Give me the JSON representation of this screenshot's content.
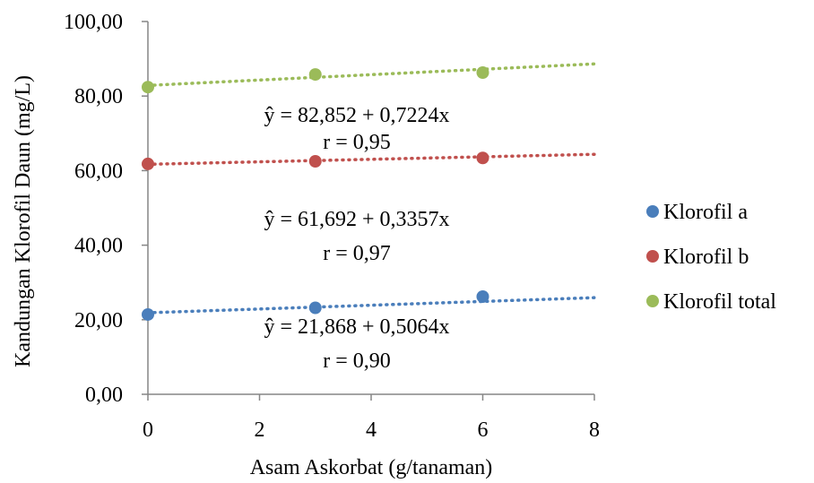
{
  "chart_data": {
    "type": "scatter",
    "xlabel": "Asam Askorbat (g/tanaman)",
    "ylabel": "Kandungan Klorofil Daun (mg/L)",
    "xlim": [
      0,
      8
    ],
    "ylim": [
      0,
      100
    ],
    "xticks": [
      "0",
      "2",
      "4",
      "6",
      "8"
    ],
    "yticks": [
      "0,00",
      "20,00",
      "40,00",
      "60,00",
      "80,00",
      "100,00"
    ],
    "grid": false,
    "legend_position": "right",
    "series": [
      {
        "name": "Klorofil a",
        "color": "#4a7ebb",
        "points": [
          {
            "x": 0,
            "y": 21.4
          },
          {
            "x": 3,
            "y": 23.2
          },
          {
            "x": 6,
            "y": 26.2
          }
        ],
        "trendline": {
          "intercept": 21.868,
          "slope": 0.5064
        },
        "equation": "ŷ =  21,868 + 0,5064x",
        "r_label": "r = 0,90"
      },
      {
        "name": "Klorofil b",
        "color": "#c0504d",
        "points": [
          {
            "x": 0,
            "y": 61.8
          },
          {
            "x": 3,
            "y": 62.5
          },
          {
            "x": 6,
            "y": 63.4
          }
        ],
        "trendline": {
          "intercept": 61.692,
          "slope": 0.3357
        },
        "equation": "ŷ =  61,692 + 0,3357x",
        "r_label": "r = 0,97"
      },
      {
        "name": "Klorofil total",
        "color": "#9bbb59",
        "points": [
          {
            "x": 0,
            "y": 82.4
          },
          {
            "x": 3,
            "y": 85.8
          },
          {
            "x": 6,
            "y": 86.3
          }
        ],
        "trendline": {
          "intercept": 82.852,
          "slope": 0.7224
        },
        "equation": "ŷ =  82,852 + 0,7224x",
        "r_label": "r = 0,95"
      }
    ]
  }
}
